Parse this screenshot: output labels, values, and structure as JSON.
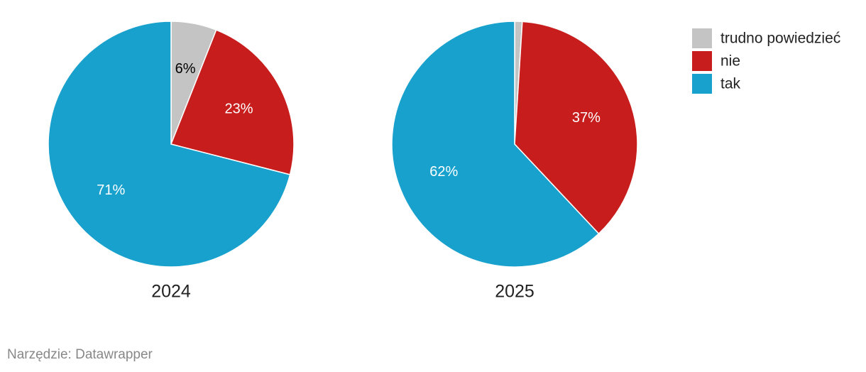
{
  "chart_data": [
    {
      "type": "pie",
      "title": "2024",
      "categories": [
        "trudno powiedzieć",
        "nie",
        "tak"
      ],
      "colors": [
        "#c4c4c4",
        "#c71e1d",
        "#18a1cd"
      ],
      "values": [
        6,
        23,
        71
      ],
      "value_labels": [
        "6%",
        "23%",
        "71%"
      ]
    },
    {
      "type": "pie",
      "title": "2025",
      "categories": [
        "trudno powiedzieć",
        "nie",
        "tak"
      ],
      "colors": [
        "#c4c4c4",
        "#c71e1d",
        "#18a1cd"
      ],
      "values": [
        1,
        37,
        62
      ],
      "value_labels": [
        null,
        "37%",
        "62%"
      ]
    }
  ],
  "footer": "Narzędzie: Datawrapper"
}
